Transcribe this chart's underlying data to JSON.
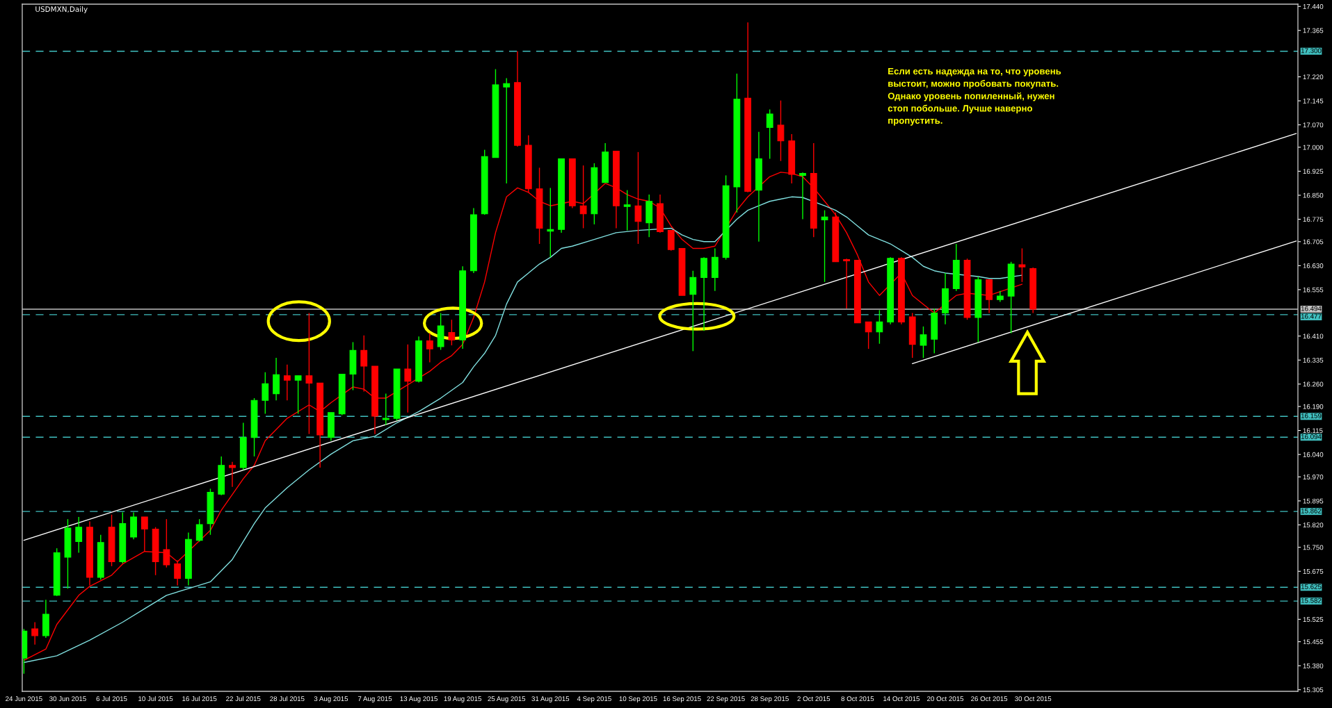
{
  "chart_data": {
    "type": "candlestick",
    "title": "USDMXN,Daily",
    "categories": [
      "24 Jun 2015",
      null,
      null,
      null,
      "30 Jun 2015",
      null,
      null,
      null,
      "6 Jul 2015",
      null,
      null,
      null,
      "10 Jul 2015",
      null,
      null,
      null,
      "16 Jul 2015",
      null,
      null,
      null,
      "22 Jul 2015",
      null,
      null,
      null,
      "28 Jul 2015",
      null,
      null,
      null,
      "3 Aug 2015",
      null,
      null,
      null,
      "7 Aug 2015",
      null,
      null,
      null,
      "13 Aug 2015",
      null,
      null,
      null,
      "19 Aug 2015",
      null,
      null,
      null,
      "25 Aug 2015",
      null,
      null,
      null,
      "31 Aug 2015",
      null,
      null,
      null,
      "4 Sep 2015",
      null,
      null,
      null,
      "10 Sep 2015",
      null,
      null,
      null,
      "16 Sep 2015",
      null,
      null,
      null,
      "22 Sep 2015",
      null,
      null,
      null,
      "28 Sep 2015",
      null,
      null,
      null,
      "2 Oct 2015",
      null,
      null,
      null,
      "8 Oct 2015",
      null,
      null,
      null,
      "14 Oct 2015",
      null,
      null,
      null,
      "20 Oct 2015",
      null,
      null,
      null,
      "26 Oct 2015",
      null,
      null,
      null,
      "30 Oct 2015",
      null,
      null,
      null,
      null,
      null,
      null,
      null,
      null,
      null,
      null,
      null,
      null,
      null,
      null,
      null,
      null,
      null,
      null,
      null,
      null,
      null,
      null,
      null,
      null
    ],
    "ohlc": [
      [
        15.404,
        15.495,
        15.355,
        15.488
      ],
      [
        15.495,
        15.516,
        15.446,
        15.474
      ],
      [
        15.474,
        15.586,
        15.467,
        15.541
      ],
      [
        15.6,
        15.747,
        15.598,
        15.733
      ],
      [
        15.719,
        15.838,
        15.621,
        15.81
      ],
      [
        15.768,
        15.845,
        15.733,
        15.813
      ],
      [
        15.813,
        15.831,
        15.631,
        15.656
      ],
      [
        15.656,
        15.789,
        15.649,
        15.765
      ],
      [
        15.813,
        15.852,
        15.691,
        15.705
      ],
      [
        15.705,
        15.859,
        15.7,
        15.824
      ],
      [
        15.782,
        15.859,
        15.775,
        15.845
      ],
      [
        15.845,
        15.845,
        15.737,
        15.807
      ],
      [
        15.807,
        15.813,
        15.663,
        15.705
      ],
      [
        15.743,
        15.838,
        15.687,
        15.695
      ],
      [
        15.698,
        15.709,
        15.631,
        15.653
      ],
      [
        15.653,
        15.796,
        15.631,
        15.775
      ],
      [
        15.772,
        15.838,
        15.768,
        15.821
      ],
      [
        15.824,
        15.933,
        15.789,
        15.922
      ],
      [
        15.916,
        16.034,
        15.913,
        16.006
      ],
      [
        16.006,
        16.017,
        15.939,
        15.999
      ],
      [
        15.999,
        16.139,
        15.992,
        16.093
      ],
      [
        16.093,
        16.216,
        16.034,
        16.209
      ],
      [
        16.209,
        16.297,
        16.167,
        16.261
      ],
      [
        16.23,
        16.342,
        16.209,
        16.289
      ],
      [
        16.286,
        16.321,
        16.209,
        16.272
      ],
      [
        16.272,
        16.286,
        16.167,
        16.286
      ],
      [
        16.286,
        16.482,
        16.104,
        16.263
      ],
      [
        16.263,
        16.263,
        15.999,
        16.101
      ],
      [
        16.093,
        16.171,
        16.083,
        16.171
      ],
      [
        16.167,
        16.291,
        16.163,
        16.291
      ],
      [
        16.291,
        16.391,
        16.241,
        16.365
      ],
      [
        16.365,
        16.412,
        16.237,
        16.316
      ],
      [
        16.316,
        16.316,
        16.104,
        16.16
      ],
      [
        16.149,
        16.23,
        16.132,
        16.153
      ],
      [
        16.153,
        16.307,
        16.146,
        16.307
      ],
      [
        16.307,
        16.384,
        16.171,
        16.269
      ],
      [
        16.269,
        16.409,
        16.265,
        16.395
      ],
      [
        16.395,
        16.419,
        16.328,
        16.37
      ],
      [
        16.377,
        16.482,
        16.367,
        16.442
      ],
      [
        16.421,
        16.461,
        16.381,
        16.398
      ],
      [
        16.398,
        16.628,
        16.37,
        16.614
      ],
      [
        16.614,
        16.81,
        16.607,
        16.789
      ],
      [
        16.792,
        16.992,
        16.789,
        16.971
      ],
      [
        16.968,
        17.244,
        16.968,
        17.195
      ],
      [
        17.188,
        17.216,
        16.887,
        17.199
      ],
      [
        17.202,
        17.3,
        17.002,
        17.006
      ],
      [
        17.006,
        17.037,
        16.859,
        16.87
      ],
      [
        16.87,
        16.936,
        16.698,
        16.747
      ],
      [
        16.738,
        16.873,
        16.656,
        16.743
      ],
      [
        16.743,
        16.964,
        16.733,
        16.964
      ],
      [
        16.964,
        16.964,
        16.81,
        16.817
      ],
      [
        16.817,
        16.943,
        16.747,
        16.792
      ],
      [
        16.792,
        16.95,
        16.759,
        16.936
      ],
      [
        16.89,
        17.013,
        16.89,
        16.985
      ],
      [
        16.988,
        16.988,
        16.747,
        16.817
      ],
      [
        16.815,
        16.866,
        16.74,
        16.82
      ],
      [
        16.817,
        16.985,
        16.698,
        16.768
      ],
      [
        16.764,
        16.852,
        16.719,
        16.831
      ],
      [
        16.824,
        16.852,
        16.733,
        16.736
      ],
      [
        16.74,
        16.74,
        16.677,
        16.68
      ],
      [
        16.684,
        16.684,
        16.537,
        16.537
      ],
      [
        16.54,
        16.614,
        16.363,
        16.593
      ],
      [
        16.593,
        16.656,
        16.426,
        16.653
      ],
      [
        16.593,
        16.684,
        16.551,
        16.656
      ],
      [
        16.656,
        16.912,
        16.649,
        16.88
      ],
      [
        16.876,
        17.23,
        16.796,
        17.15
      ],
      [
        17.153,
        17.39,
        16.859,
        16.862
      ],
      [
        16.866,
        17.048,
        16.705,
        16.964
      ],
      [
        17.062,
        17.118,
        16.964,
        17.104
      ],
      [
        17.069,
        17.146,
        16.957,
        17.02
      ],
      [
        17.02,
        17.041,
        16.887,
        16.915
      ],
      [
        16.912,
        16.921,
        16.775,
        16.918
      ],
      [
        16.918,
        17.013,
        16.719,
        16.747
      ],
      [
        16.773,
        16.803,
        16.579,
        16.782
      ],
      [
        16.782,
        16.796,
        16.642,
        16.642
      ],
      [
        16.649,
        16.652,
        16.496,
        16.645
      ],
      [
        16.647,
        16.647,
        16.451,
        16.451
      ],
      [
        16.454,
        16.454,
        16.37,
        16.423
      ],
      [
        16.423,
        16.491,
        16.386,
        16.454
      ],
      [
        16.454,
        16.656,
        16.447,
        16.653
      ],
      [
        16.653,
        16.656,
        16.447,
        16.454
      ],
      [
        16.47,
        16.482,
        16.342,
        16.384
      ],
      [
        16.381,
        16.44,
        16.342,
        16.414
      ],
      [
        16.4,
        16.496,
        16.356,
        16.482
      ],
      [
        16.482,
        16.607,
        16.447,
        16.558
      ],
      [
        16.558,
        16.698,
        16.551,
        16.647
      ],
      [
        16.647,
        16.652,
        16.461,
        16.468
      ],
      [
        16.468,
        16.596,
        16.391,
        16.586
      ],
      [
        16.586,
        16.586,
        16.482,
        16.524
      ],
      [
        16.524,
        16.551,
        16.517,
        16.535
      ],
      [
        16.535,
        16.642,
        16.419,
        16.635
      ],
      [
        16.633,
        16.684,
        16.579,
        16.626
      ],
      [
        16.621,
        16.624,
        16.482,
        16.494
      ],
      null,
      null,
      null,
      null,
      null,
      null,
      null,
      null,
      null,
      null,
      null,
      null,
      null,
      null,
      null,
      null,
      null,
      null,
      null,
      null,
      null,
      null,
      null,
      null
    ],
    "colors": [
      "#00ff00",
      "#ff0000",
      "#00ff00",
      "#00ff00",
      "#00ff00",
      "#00ff00",
      "#ff0000",
      "#00ff00",
      "#ff0000",
      "#00ff00",
      "#00ff00",
      "#ff0000",
      "#ff0000",
      "#ff0000",
      "#ff0000",
      "#00ff00",
      "#00ff00",
      "#00ff00",
      "#00ff00",
      "#ff0000",
      "#00ff00",
      "#00ff00",
      "#00ff00",
      "#00ff00",
      "#ff0000",
      "#00ff00",
      "#ff0000",
      "#ff0000",
      "#00ff00",
      "#00ff00",
      "#00ff00",
      "#ff0000",
      "#ff0000",
      "#00ff00",
      "#00ff00",
      "#ff0000",
      "#00ff00",
      "#ff0000",
      "#00ff00",
      "#ff0000",
      "#00ff00",
      "#00ff00",
      "#00ff00",
      "#00ff00",
      "#00ff00",
      "#ff0000",
      "#ff0000",
      "#ff0000",
      "#00ff00",
      "#00ff00",
      "#ff0000",
      "#ff0000",
      "#00ff00",
      "#00ff00",
      "#ff0000",
      "#00ff00",
      "#ff0000",
      "#00ff00",
      "#ff0000",
      "#ff0000",
      "#ff0000",
      "#00ff00",
      "#00ff00",
      "#00ff00",
      "#00ff00",
      "#00ff00",
      "#ff0000",
      "#00ff00",
      "#00ff00",
      "#ff0000",
      "#ff0000",
      "#00ff00",
      "#ff0000",
      "#00ff00",
      "#ff0000",
      "#ff0000",
      "#ff0000",
      "#ff0000",
      "#00ff00",
      "#00ff00",
      "#ff0000",
      "#ff0000",
      "#00ff00",
      "#00ff00",
      "#00ff00",
      "#00ff00",
      "#ff0000",
      "#00ff00",
      "#ff0000",
      "#00ff00",
      "#00ff00",
      "#ff0000",
      "#ff0000",
      null,
      null,
      null,
      null,
      null,
      null,
      null,
      null,
      null,
      null,
      null,
      null,
      null,
      null,
      null,
      null,
      null,
      null,
      null,
      null,
      null,
      null,
      null,
      null
    ],
    "series": [
      {
        "type": "line",
        "color": "#ff0000",
        "values": [
          15.397,
          null,
          15.432,
          15.509,
          null,
          15.6,
          15.628,
          null,
          15.663,
          15.698,
          null,
          15.737,
          null,
          15.733,
          15.705,
          null,
          null,
          15.803,
          15.866,
          null,
          15.964,
          16.006,
          16.083,
          null,
          16.153,
          null,
          16.195,
          16.174,
          16.202,
          null,
          16.251,
          16.244,
          16.216,
          16.216,
          null,
          null,
          null,
          16.3,
          16.328,
          16.349,
          16.384,
          16.468,
          16.579,
          16.733,
          16.845,
          16.873,
          16.859,
          16.831,
          16.817,
          null,
          16.831,
          16.824,
          null,
          16.887,
          16.873,
          16.852,
          16.838,
          16.831,
          16.81,
          16.754,
          16.712,
          16.684,
          16.684,
          16.691,
          null,
          16.803,
          16.845,
          null,
          16.908,
          16.922,
          16.918,
          16.908,
          16.873,
          16.831,
          16.789,
          16.733,
          16.663,
          16.579,
          16.537,
          null,
          16.607,
          16.537,
          16.509,
          16.482,
          null,
          16.537,
          16.544,
          null,
          16.537,
          null,
          null,
          16.572,
          null,
          null,
          null,
          null,
          null,
          null,
          null,
          null,
          null,
          null,
          null,
          null,
          null,
          null,
          null,
          null,
          null,
          null,
          null,
          null,
          null,
          null,
          null,
          null,
          null
        ]
      },
      {
        "type": "line",
        "color": "#80e0e0",
        "values": [
          15.39,
          null,
          null,
          15.411,
          null,
          null,
          15.46,
          null,
          null,
          15.516,
          null,
          15.558,
          null,
          15.6,
          null,
          15.621,
          null,
          15.642,
          null,
          15.712,
          null,
          15.824,
          15.873,
          null,
          15.936,
          null,
          15.992,
          null,
          16.041,
          null,
          16.083,
          null,
          16.097,
          null,
          16.139,
          null,
          16.174,
          null,
          16.216,
          null,
          16.265,
          16.314,
          16.356,
          16.412,
          16.51,
          16.579,
          16.607,
          16.635,
          16.656,
          16.684,
          16.691,
          null,
          16.712,
          null,
          16.733,
          null,
          16.74,
          null,
          null,
          16.747,
          16.726,
          16.712,
          16.705,
          16.705,
          null,
          16.775,
          16.803,
          16.817,
          16.831,
          16.838,
          16.845,
          16.843,
          null,
          16.817,
          16.803,
          16.782,
          16.754,
          16.726,
          16.712,
          16.698,
          16.677,
          16.656,
          16.628,
          16.614,
          16.607,
          null,
          null,
          16.596,
          16.59,
          16.59,
          null,
          16.6,
          null,
          null,
          null,
          null,
          null,
          null,
          null,
          null,
          null,
          null,
          null,
          null,
          null,
          null,
          null,
          null,
          null,
          null,
          null,
          null,
          null,
          null,
          null,
          null,
          null
        ]
      },
      {
        "type": "line",
        "color": "#ffffff",
        "values": [
          15.772,
          null,
          null,
          null,
          null,
          null,
          null,
          null,
          null,
          null,
          null,
          null,
          null,
          null,
          null,
          null,
          null,
          null,
          null,
          null,
          null,
          null,
          null,
          null,
          null,
          null,
          null,
          null,
          null,
          null,
          null,
          null,
          null,
          null,
          null,
          null,
          null,
          null,
          null,
          null,
          null,
          null,
          null,
          null,
          null,
          null,
          null,
          null,
          null,
          null,
          null,
          null,
          null,
          null,
          null,
          null,
          null,
          null,
          null,
          null,
          null,
          null,
          null,
          null,
          null,
          null,
          null,
          null,
          null,
          null,
          null,
          null,
          null,
          null,
          null,
          null,
          null,
          null,
          null,
          null,
          null,
          null,
          null,
          null,
          null,
          null,
          null,
          null,
          null,
          null,
          null,
          null,
          null,
          null,
          null,
          null,
          null,
          null,
          null,
          null,
          null,
          null,
          null,
          null,
          null,
          null,
          null,
          null,
          null,
          null,
          null,
          null,
          null,
          null,
          null,
          null,
          17.043
        ]
      },
      {
        "type": "line",
        "color": "#ffffff",
        "values": [
          null,
          null,
          null,
          null,
          null,
          null,
          null,
          null,
          null,
          null,
          null,
          null,
          null,
          null,
          null,
          null,
          null,
          null,
          null,
          null,
          null,
          null,
          null,
          null,
          null,
          null,
          null,
          null,
          null,
          null,
          null,
          null,
          null,
          null,
          null,
          null,
          null,
          null,
          null,
          null,
          null,
          null,
          null,
          null,
          null,
          null,
          null,
          null,
          null,
          null,
          null,
          null,
          null,
          null,
          null,
          null,
          null,
          null,
          null,
          null,
          null,
          null,
          null,
          null,
          null,
          null,
          null,
          null,
          null,
          null,
          null,
          null,
          null,
          null,
          null,
          null,
          null,
          null,
          null,
          null,
          null,
          16.324,
          null,
          null,
          null,
          null,
          null,
          null,
          null,
          null,
          null,
          null,
          null,
          null,
          null,
          null,
          null,
          null,
          null,
          null,
          null,
          null,
          null,
          null,
          null,
          null,
          null,
          null,
          null,
          null,
          null,
          null,
          null,
          null,
          null,
          null,
          16.707
        ]
      }
    ],
    "ylim": [
      15.3,
      17.447
    ],
    "yticks": [
      {
        "value": 17.44,
        "label": "17.440"
      },
      {
        "value": 17.365,
        "label": "17.365"
      },
      {
        "value": 17.22,
        "label": "17.220"
      },
      {
        "value": 17.145,
        "label": "17.145"
      },
      {
        "value": 17.07,
        "label": "17.070"
      },
      {
        "value": 17.0,
        "label": "17.000"
      },
      {
        "value": 16.925,
        "label": "16.925"
      },
      {
        "value": 16.85,
        "label": "16.850"
      },
      {
        "value": 16.775,
        "label": "16.775"
      },
      {
        "value": 16.705,
        "label": "16.705"
      },
      {
        "value": 16.63,
        "label": "16.630"
      },
      {
        "value": 16.555,
        "label": "16.555"
      },
      {
        "value": 16.41,
        "label": "16.410"
      },
      {
        "value": 16.335,
        "label": "16.335"
      },
      {
        "value": 16.26,
        "label": "16.260"
      },
      {
        "value": 16.19,
        "label": "16.190"
      },
      {
        "value": 16.115,
        "label": "16.115"
      },
      {
        "value": 16.04,
        "label": "16.040"
      },
      {
        "value": 15.97,
        "label": "15.970"
      },
      {
        "value": 15.895,
        "label": "15.895"
      },
      {
        "value": 15.82,
        "label": "15.820"
      },
      {
        "value": 15.75,
        "label": "15.750"
      },
      {
        "value": 15.675,
        "label": "15.675"
      },
      {
        "value": 15.525,
        "label": "15.525"
      },
      {
        "value": 15.455,
        "label": "15.455"
      },
      {
        "value": 15.38,
        "label": "15.380"
      },
      {
        "value": 15.305,
        "label": "15.305"
      }
    ],
    "ref_lines": [
      {
        "axis": "y",
        "value": 17.3,
        "label": "17.300",
        "color": "#40c0c0",
        "line_style": "dashed"
      },
      {
        "axis": "y",
        "value": 16.494,
        "label": "16.494",
        "color": "#c0c0c0",
        "line_style": "solid"
      },
      {
        "axis": "y",
        "value": 16.477,
        "label": "16.477",
        "color": "#40c0c0",
        "line_style": "dashed"
      },
      {
        "axis": "y",
        "value": 16.159,
        "label": "16.159",
        "color": "#40c0c0",
        "line_style": "dashed"
      },
      {
        "axis": "y",
        "value": 16.094,
        "label": "16.094",
        "color": "#40c0c0",
        "line_style": "dashed"
      },
      {
        "axis": "y",
        "value": 15.862,
        "label": "15.862",
        "color": "#40c0c0",
        "line_style": "dashed"
      },
      {
        "axis": "y",
        "value": 15.625,
        "label": "15.625",
        "color": "#40c0c0",
        "line_style": "dashed"
      },
      {
        "axis": "y",
        "value": 15.582,
        "label": "15.582",
        "color": "#40c0c0",
        "line_style": "dashed"
      }
    ],
    "annotations": [
      "Если есть надежда на то, что уровень\nвыстоит, можно пробовать покупать.\nОднако уровень попиленный, нужен\nстоп побольше. Лучше наверно\nпропустить."
    ],
    "grid": false,
    "legend": false
  }
}
